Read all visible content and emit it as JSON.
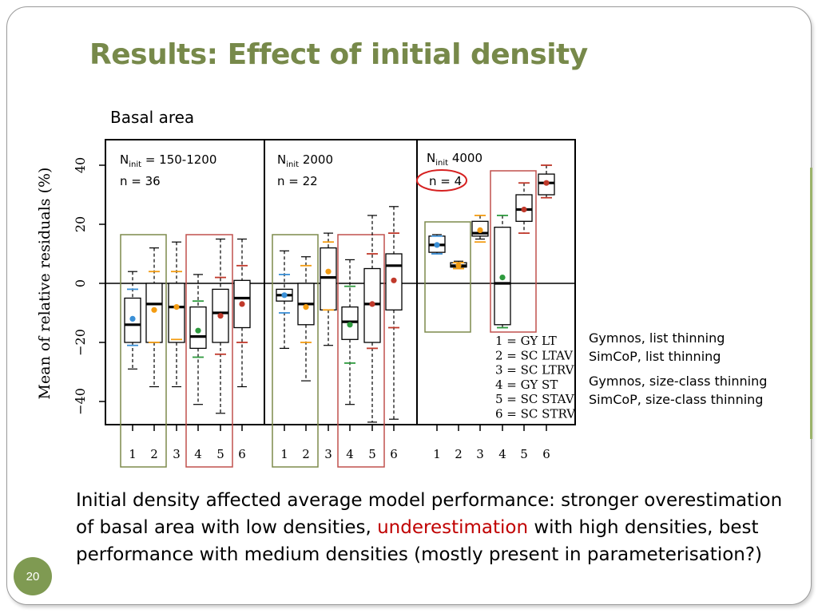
{
  "slide": {
    "title": "Results: Effect of initial density",
    "subtitle": "Basal area",
    "page_number": "20",
    "caption": {
      "part1": "Initial density affected average model performance: stronger overestimation of basal area with low densities, ",
      "highlight": "underestimation",
      "part2": " with high densities, best performance with medium densities (mostly present in parameterisation?)"
    },
    "legend_descriptions": [
      "Gymnos, list thinning",
      "SimCoP, list thinning",
      "Gymnos, size-class thinning",
      "SimCoP, size-class thinning"
    ]
  },
  "colors": {
    "title": "#77894a",
    "highlight": "#c00000",
    "group_box_green": "#7d8a4c",
    "group_box_red": "#c0504d",
    "model1_mean": "#3a8fd6",
    "model2_mean": "#f39c12",
    "model3_mean": "#f39c12",
    "model4_mean": "#2e9a3e",
    "model5_mean": "#c0392b",
    "model6_mean": "#c0392b"
  },
  "chart_data": {
    "type": "boxplot",
    "ylabel": "Mean of relative residuals (%)",
    "ylim": [
      -48,
      48
    ],
    "yticks": [
      -40,
      -20,
      0,
      20,
      40
    ],
    "categories": [
      "1",
      "2",
      "3",
      "4",
      "5",
      "6"
    ],
    "reference_line": 0,
    "legend": [
      "1 = GY LT",
      "2 = SC LTAV",
      "3 = SC LTRV",
      "4 = GY ST",
      "5 = SC STAV",
      "6 = SC STRV"
    ],
    "panels": [
      {
        "label_main": "N",
        "label_sub": "init",
        "label_rest": " = 150-1200",
        "n_label": "n = 36",
        "n_circled": false,
        "boxes": [
          {
            "min": -29,
            "q1": -20,
            "median": -14,
            "q3": -5,
            "max": 4,
            "mean": -12,
            "mean_minus_sd": -21,
            "mean_plus_sd": -2
          },
          {
            "min": -35,
            "q1": -20,
            "median": -7,
            "q3": 0,
            "max": 12,
            "mean": -9,
            "mean_minus_sd": -20,
            "mean_plus_sd": 4
          },
          {
            "min": -35,
            "q1": -20,
            "median": -8,
            "q3": 0,
            "max": 14,
            "mean": -8,
            "mean_minus_sd": -19,
            "mean_plus_sd": 4
          },
          {
            "min": -41,
            "q1": -22,
            "median": -18,
            "q3": -8,
            "max": 3,
            "mean": -16,
            "mean_minus_sd": -25,
            "mean_plus_sd": -6
          },
          {
            "min": -44,
            "q1": -20,
            "median": -10,
            "q3": -2,
            "max": 15,
            "mean": -11,
            "mean_minus_sd": -24,
            "mean_plus_sd": 2
          },
          {
            "min": -35,
            "q1": -15,
            "median": -5,
            "q3": 1,
            "max": 15,
            "mean": -7,
            "mean_minus_sd": -20,
            "mean_plus_sd": 6
          }
        ],
        "highlight_boxes": [
          {
            "color": "green",
            "from": 1,
            "to": 2
          },
          {
            "color": "red",
            "from": 4,
            "to": 5
          }
        ]
      },
      {
        "label_main": "N",
        "label_sub": "init",
        "label_rest": "  2000",
        "n_label": "n = 22",
        "n_circled": false,
        "boxes": [
          {
            "min": -22,
            "q1": -6,
            "median": -4,
            "q3": -2,
            "max": 11,
            "mean": -4,
            "mean_minus_sd": -10,
            "mean_plus_sd": 3
          },
          {
            "min": -33,
            "q1": -14,
            "median": -7,
            "q3": 0,
            "max": 9,
            "mean": -8,
            "mean_minus_sd": -20,
            "mean_plus_sd": 6
          },
          {
            "min": -21,
            "q1": -9,
            "median": 2,
            "q3": 12,
            "max": 17,
            "mean": 4,
            "mean_minus_sd": -9,
            "mean_plus_sd": 14
          },
          {
            "min": -41,
            "q1": -19,
            "median": -13,
            "q3": -8,
            "max": 8,
            "mean": -14,
            "mean_minus_sd": -27,
            "mean_plus_sd": -1
          },
          {
            "min": -47,
            "q1": -20,
            "median": -7,
            "q3": 5,
            "max": 23,
            "mean": -7,
            "mean_minus_sd": -22,
            "mean_plus_sd": 10
          },
          {
            "min": -46,
            "q1": -9,
            "median": 6,
            "q3": 10,
            "max": 26,
            "mean": 1,
            "mean_minus_sd": -15,
            "mean_plus_sd": 17
          }
        ],
        "highlight_boxes": [
          {
            "color": "green",
            "from": 1,
            "to": 2
          },
          {
            "color": "red",
            "from": 4,
            "to": 5
          }
        ]
      },
      {
        "label_main": "N",
        "label_sub": "init",
        "label_rest": "  4000",
        "n_label": "n = 4",
        "n_circled": true,
        "boxes": [
          {
            "min": 10,
            "q1": 10.5,
            "median": 13,
            "q3": 16,
            "max": 16.5,
            "mean": 13,
            "mean_minus_sd": 10,
            "mean_plus_sd": 16
          },
          {
            "min": 5,
            "q1": 5.5,
            "median": 6,
            "q3": 7,
            "max": 7.5,
            "mean": 6,
            "mean_minus_sd": 5,
            "mean_plus_sd": 7
          },
          {
            "min": 15,
            "q1": 16,
            "median": 17,
            "q3": 21,
            "max": 23,
            "mean": 18,
            "mean_minus_sd": 14,
            "mean_plus_sd": 23
          },
          {
            "min": -15,
            "q1": -14,
            "median": 0,
            "q3": 19,
            "max": 23,
            "mean": 2,
            "mean_minus_sd": -15,
            "mean_plus_sd": 23
          },
          {
            "min": 17,
            "q1": 21,
            "median": 25,
            "q3": 30,
            "max": 34,
            "mean": 25,
            "mean_minus_sd": 17,
            "mean_plus_sd": 34
          },
          {
            "min": 29,
            "q1": 30,
            "median": 34,
            "q3": 37,
            "max": 40,
            "mean": 34,
            "mean_minus_sd": 29,
            "mean_plus_sd": 40
          }
        ],
        "highlight_boxes": [
          {
            "color": "green",
            "from": 1,
            "to": 2
          },
          {
            "color": "red",
            "from": 4,
            "to": 5
          }
        ]
      }
    ]
  }
}
